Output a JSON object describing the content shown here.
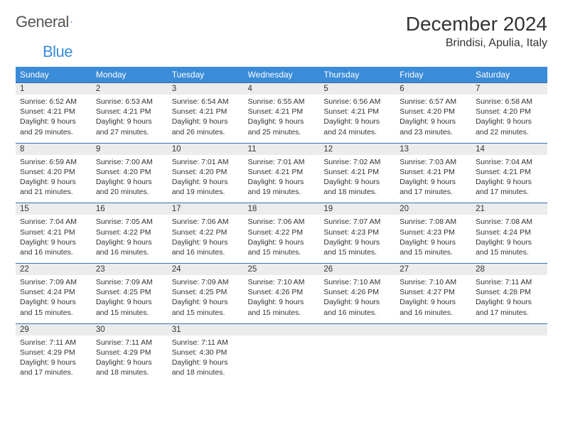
{
  "logo": {
    "word1": "General",
    "word2": "Blue"
  },
  "title": "December 2024",
  "location": "Brindisi, Apulia, Italy",
  "colors": {
    "header_bg": "#3a8bd8",
    "header_text": "#ffffff",
    "row_border": "#3a6fa8",
    "daynum_bg": "#ececec",
    "body_text": "#333333",
    "logo_gray": "#555555",
    "logo_blue": "#3a8bd8"
  },
  "weekdays": [
    "Sunday",
    "Monday",
    "Tuesday",
    "Wednesday",
    "Thursday",
    "Friday",
    "Saturday"
  ],
  "weeks": [
    [
      {
        "num": "1",
        "sunrise": "Sunrise: 6:52 AM",
        "sunset": "Sunset: 4:21 PM",
        "day1": "Daylight: 9 hours",
        "day2": "and 29 minutes."
      },
      {
        "num": "2",
        "sunrise": "Sunrise: 6:53 AM",
        "sunset": "Sunset: 4:21 PM",
        "day1": "Daylight: 9 hours",
        "day2": "and 27 minutes."
      },
      {
        "num": "3",
        "sunrise": "Sunrise: 6:54 AM",
        "sunset": "Sunset: 4:21 PM",
        "day1": "Daylight: 9 hours",
        "day2": "and 26 minutes."
      },
      {
        "num": "4",
        "sunrise": "Sunrise: 6:55 AM",
        "sunset": "Sunset: 4:21 PM",
        "day1": "Daylight: 9 hours",
        "day2": "and 25 minutes."
      },
      {
        "num": "5",
        "sunrise": "Sunrise: 6:56 AM",
        "sunset": "Sunset: 4:21 PM",
        "day1": "Daylight: 9 hours",
        "day2": "and 24 minutes."
      },
      {
        "num": "6",
        "sunrise": "Sunrise: 6:57 AM",
        "sunset": "Sunset: 4:20 PM",
        "day1": "Daylight: 9 hours",
        "day2": "and 23 minutes."
      },
      {
        "num": "7",
        "sunrise": "Sunrise: 6:58 AM",
        "sunset": "Sunset: 4:20 PM",
        "day1": "Daylight: 9 hours",
        "day2": "and 22 minutes."
      }
    ],
    [
      {
        "num": "8",
        "sunrise": "Sunrise: 6:59 AM",
        "sunset": "Sunset: 4:20 PM",
        "day1": "Daylight: 9 hours",
        "day2": "and 21 minutes."
      },
      {
        "num": "9",
        "sunrise": "Sunrise: 7:00 AM",
        "sunset": "Sunset: 4:20 PM",
        "day1": "Daylight: 9 hours",
        "day2": "and 20 minutes."
      },
      {
        "num": "10",
        "sunrise": "Sunrise: 7:01 AM",
        "sunset": "Sunset: 4:20 PM",
        "day1": "Daylight: 9 hours",
        "day2": "and 19 minutes."
      },
      {
        "num": "11",
        "sunrise": "Sunrise: 7:01 AM",
        "sunset": "Sunset: 4:21 PM",
        "day1": "Daylight: 9 hours",
        "day2": "and 19 minutes."
      },
      {
        "num": "12",
        "sunrise": "Sunrise: 7:02 AM",
        "sunset": "Sunset: 4:21 PM",
        "day1": "Daylight: 9 hours",
        "day2": "and 18 minutes."
      },
      {
        "num": "13",
        "sunrise": "Sunrise: 7:03 AM",
        "sunset": "Sunset: 4:21 PM",
        "day1": "Daylight: 9 hours",
        "day2": "and 17 minutes."
      },
      {
        "num": "14",
        "sunrise": "Sunrise: 7:04 AM",
        "sunset": "Sunset: 4:21 PM",
        "day1": "Daylight: 9 hours",
        "day2": "and 17 minutes."
      }
    ],
    [
      {
        "num": "15",
        "sunrise": "Sunrise: 7:04 AM",
        "sunset": "Sunset: 4:21 PM",
        "day1": "Daylight: 9 hours",
        "day2": "and 16 minutes."
      },
      {
        "num": "16",
        "sunrise": "Sunrise: 7:05 AM",
        "sunset": "Sunset: 4:22 PM",
        "day1": "Daylight: 9 hours",
        "day2": "and 16 minutes."
      },
      {
        "num": "17",
        "sunrise": "Sunrise: 7:06 AM",
        "sunset": "Sunset: 4:22 PM",
        "day1": "Daylight: 9 hours",
        "day2": "and 16 minutes."
      },
      {
        "num": "18",
        "sunrise": "Sunrise: 7:06 AM",
        "sunset": "Sunset: 4:22 PM",
        "day1": "Daylight: 9 hours",
        "day2": "and 15 minutes."
      },
      {
        "num": "19",
        "sunrise": "Sunrise: 7:07 AM",
        "sunset": "Sunset: 4:23 PM",
        "day1": "Daylight: 9 hours",
        "day2": "and 15 minutes."
      },
      {
        "num": "20",
        "sunrise": "Sunrise: 7:08 AM",
        "sunset": "Sunset: 4:23 PM",
        "day1": "Daylight: 9 hours",
        "day2": "and 15 minutes."
      },
      {
        "num": "21",
        "sunrise": "Sunrise: 7:08 AM",
        "sunset": "Sunset: 4:24 PM",
        "day1": "Daylight: 9 hours",
        "day2": "and 15 minutes."
      }
    ],
    [
      {
        "num": "22",
        "sunrise": "Sunrise: 7:09 AM",
        "sunset": "Sunset: 4:24 PM",
        "day1": "Daylight: 9 hours",
        "day2": "and 15 minutes."
      },
      {
        "num": "23",
        "sunrise": "Sunrise: 7:09 AM",
        "sunset": "Sunset: 4:25 PM",
        "day1": "Daylight: 9 hours",
        "day2": "and 15 minutes."
      },
      {
        "num": "24",
        "sunrise": "Sunrise: 7:09 AM",
        "sunset": "Sunset: 4:25 PM",
        "day1": "Daylight: 9 hours",
        "day2": "and 15 minutes."
      },
      {
        "num": "25",
        "sunrise": "Sunrise: 7:10 AM",
        "sunset": "Sunset: 4:26 PM",
        "day1": "Daylight: 9 hours",
        "day2": "and 15 minutes."
      },
      {
        "num": "26",
        "sunrise": "Sunrise: 7:10 AM",
        "sunset": "Sunset: 4:26 PM",
        "day1": "Daylight: 9 hours",
        "day2": "and 16 minutes."
      },
      {
        "num": "27",
        "sunrise": "Sunrise: 7:10 AM",
        "sunset": "Sunset: 4:27 PM",
        "day1": "Daylight: 9 hours",
        "day2": "and 16 minutes."
      },
      {
        "num": "28",
        "sunrise": "Sunrise: 7:11 AM",
        "sunset": "Sunset: 4:28 PM",
        "day1": "Daylight: 9 hours",
        "day2": "and 17 minutes."
      }
    ],
    [
      {
        "num": "29",
        "sunrise": "Sunrise: 7:11 AM",
        "sunset": "Sunset: 4:29 PM",
        "day1": "Daylight: 9 hours",
        "day2": "and 17 minutes."
      },
      {
        "num": "30",
        "sunrise": "Sunrise: 7:11 AM",
        "sunset": "Sunset: 4:29 PM",
        "day1": "Daylight: 9 hours",
        "day2": "and 18 minutes."
      },
      {
        "num": "31",
        "sunrise": "Sunrise: 7:11 AM",
        "sunset": "Sunset: 4:30 PM",
        "day1": "Daylight: 9 hours",
        "day2": "and 18 minutes."
      },
      null,
      null,
      null,
      null
    ]
  ]
}
